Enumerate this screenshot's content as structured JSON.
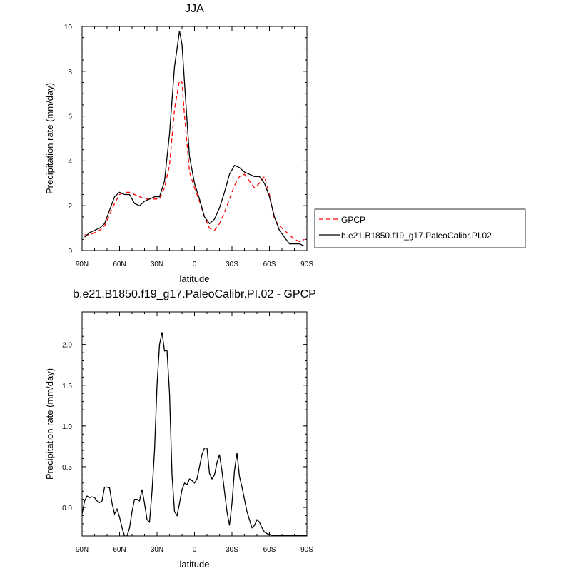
{
  "chart_data": [
    {
      "type": "line",
      "title": "JJA",
      "xlabel": "latitude",
      "ylabel": "Precipitation rate (mm/day)",
      "xticks": [
        "90N",
        "60N",
        "30N",
        "0",
        "30S",
        "60S",
        "90S"
      ],
      "yticks": [
        "0",
        "2",
        "4",
        "6",
        "8",
        "10"
      ],
      "xlim": [
        90,
        -90
      ],
      "ylim": [
        0,
        10
      ],
      "legend_position": "right",
      "series": [
        {
          "name": "GPCP",
          "color": "#ff0000",
          "dash": "dashed",
          "x": [
            88,
            84,
            80,
            76,
            72,
            68,
            64,
            60,
            56,
            52,
            48,
            44,
            40,
            36,
            32,
            28,
            24,
            20,
            16,
            12,
            10,
            8,
            6,
            4,
            0,
            -4,
            -8,
            -12,
            -16,
            -20,
            -24,
            -28,
            -32,
            -36,
            -40,
            -44,
            -48,
            -52,
            -56,
            -60,
            -64,
            -68,
            -72,
            -76,
            -80,
            -84,
            -88
          ],
          "y": [
            0.7,
            0.7,
            0.8,
            0.9,
            1.1,
            1.6,
            2.1,
            2.5,
            2.6,
            2.6,
            2.5,
            2.4,
            2.3,
            2.3,
            2.3,
            2.3,
            2.8,
            3.8,
            6.3,
            7.6,
            7.5,
            6.0,
            4.8,
            3.5,
            2.8,
            2.2,
            1.5,
            1.0,
            0.9,
            1.2,
            1.7,
            2.3,
            2.9,
            3.3,
            3.4,
            3.1,
            2.8,
            3.0,
            3.3,
            2.5,
            1.4,
            1.1,
            0.9,
            0.7,
            0.5,
            0.4,
            0.5
          ]
        },
        {
          "name": "b.e21.B1850.f19_g17.PaleoCalibr.PI.02",
          "color": "#000000",
          "dash": "solid",
          "x": [
            88,
            84,
            80,
            76,
            72,
            68,
            64,
            60,
            56,
            52,
            48,
            44,
            40,
            36,
            32,
            28,
            24,
            20,
            16,
            12,
            10,
            8,
            6,
            4,
            0,
            -4,
            -8,
            -12,
            -16,
            -20,
            -24,
            -28,
            -32,
            -36,
            -40,
            -44,
            -48,
            -52,
            -56,
            -60,
            -64,
            -68,
            -72,
            -76,
            -80,
            -84,
            -88
          ],
          "y": [
            0.6,
            0.8,
            0.9,
            1.0,
            1.2,
            1.8,
            2.4,
            2.6,
            2.5,
            2.5,
            2.1,
            2.0,
            2.2,
            2.3,
            2.4,
            2.4,
            3.1,
            5.2,
            8.2,
            9.8,
            9.2,
            7.5,
            5.8,
            4.2,
            3.0,
            2.3,
            1.5,
            1.2,
            1.4,
            1.9,
            2.6,
            3.4,
            3.8,
            3.7,
            3.5,
            3.4,
            3.3,
            3.3,
            3.0,
            2.4,
            1.5,
            0.9,
            0.6,
            0.3,
            0.3,
            0.3,
            0.2
          ]
        }
      ]
    },
    {
      "type": "line",
      "title": "b.e21.B1850.f19_g17.PaleoCalibr.PI.02 - GPCP",
      "xlabel": "latitude",
      "ylabel": "Precipitation rate (mm/day)",
      "xticks": [
        "90N",
        "60N",
        "30N",
        "0",
        "30S",
        "60S",
        "90S"
      ],
      "yticks": [
        "0.0",
        "0.5",
        "1.0",
        "1.5",
        "2.0"
      ],
      "xlim": [
        90,
        -90
      ],
      "ylim": [
        -0.35,
        2.4
      ],
      "series": [
        {
          "color": "#000000",
          "dash": "solid",
          "x": [
            90,
            88,
            86,
            84,
            82,
            80,
            78,
            76,
            74,
            72,
            70,
            68,
            66,
            64,
            62,
            60,
            58,
            56,
            54,
            52,
            50,
            48,
            46,
            44,
            42,
            40,
            38,
            36,
            34,
            32,
            30,
            28,
            26,
            24,
            22,
            20,
            18,
            16,
            14,
            12,
            10,
            8,
            6,
            4,
            2,
            0,
            -2,
            -4,
            -6,
            -8,
            -10,
            -12,
            -14,
            -16,
            -18,
            -20,
            -22,
            -24,
            -26,
            -28,
            -30,
            -32,
            -34,
            -36,
            -38,
            -40,
            -42,
            -44,
            -46,
            -48,
            -50,
            -52,
            -54,
            -56,
            -58,
            -60,
            -62,
            -64,
            -66,
            -68,
            -70,
            -72,
            -74,
            -76,
            -78,
            -80,
            -82,
            -84,
            -86,
            -88,
            -90
          ],
          "y": [
            -0.08,
            0.08,
            0.14,
            0.12,
            0.13,
            0.12,
            0.08,
            0.06,
            0.08,
            0.25,
            0.25,
            0.24,
            0.05,
            -0.08,
            -0.02,
            -0.12,
            -0.25,
            -0.35,
            -0.35,
            -0.25,
            -0.05,
            0.1,
            0.1,
            0.08,
            0.22,
            0.05,
            -0.15,
            -0.18,
            0.2,
            0.7,
            1.5,
            2.0,
            2.15,
            1.92,
            1.93,
            1.4,
            0.4,
            -0.05,
            -0.1,
            0.05,
            0.22,
            0.3,
            0.28,
            0.35,
            0.33,
            0.3,
            0.35,
            0.5,
            0.65,
            0.73,
            0.73,
            0.42,
            0.35,
            0.4,
            0.55,
            0.65,
            0.45,
            0.2,
            -0.05,
            -0.22,
            0.05,
            0.45,
            0.67,
            0.38,
            0.25,
            0.1,
            -0.05,
            -0.15,
            -0.25,
            -0.22,
            -0.15,
            -0.18,
            -0.25,
            -0.3,
            -0.32,
            -0.33,
            -0.34,
            -0.34,
            -0.34,
            -0.34,
            -0.34,
            -0.34,
            -0.34,
            -0.34,
            -0.34,
            -0.34,
            -0.34,
            -0.34,
            -0.34,
            -0.34,
            -0.34
          ]
        }
      ]
    }
  ]
}
